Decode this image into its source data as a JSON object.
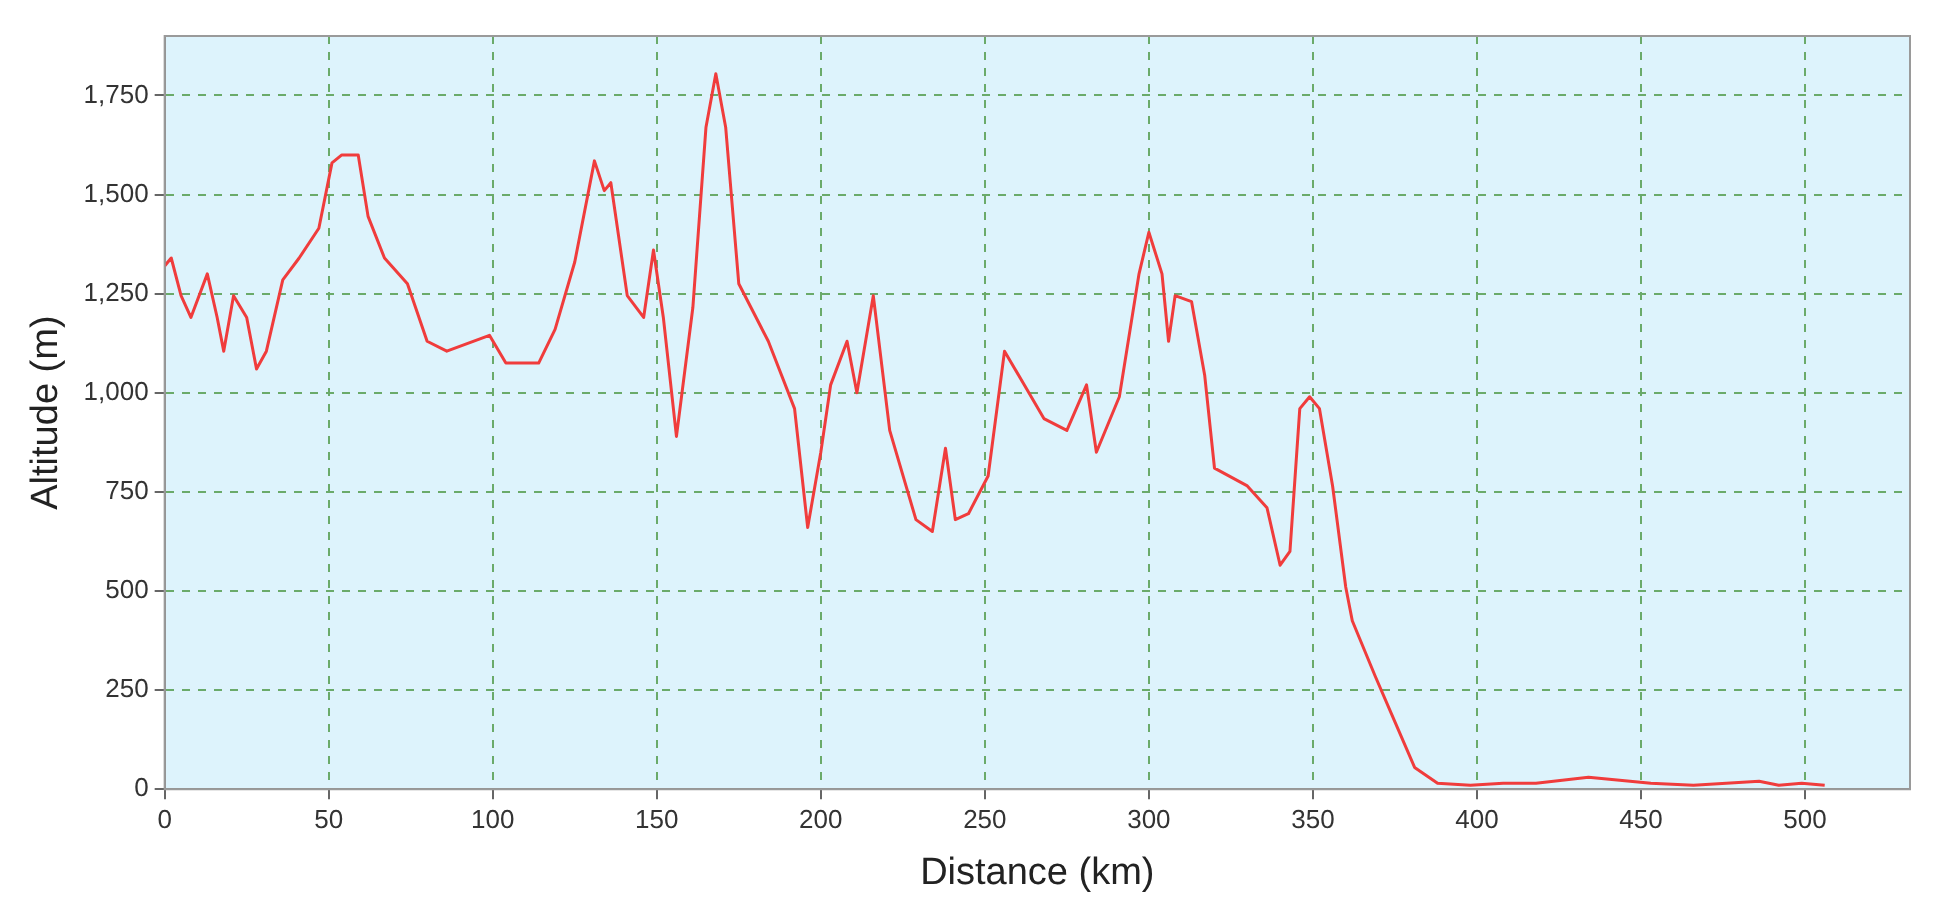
{
  "chart_data": {
    "type": "line",
    "xlabel": "Distance (km)",
    "ylabel": "Altitude (m)",
    "xlim": [
      0,
      532
    ],
    "ylim": [
      0,
      1900
    ],
    "xticks": [
      0,
      50,
      100,
      150,
      200,
      250,
      300,
      350,
      400,
      450,
      500
    ],
    "yticks": [
      0,
      250,
      500,
      750,
      {
        "value": 1000,
        "label": "1,000"
      },
      {
        "value": 1250,
        "label": "1,250"
      },
      {
        "value": 1500,
        "label": "1,500"
      },
      {
        "value": 1750,
        "label": "1,750"
      }
    ],
    "grid": true,
    "legend": false,
    "marker": "none",
    "line_style": "solid",
    "series": [
      {
        "color": "#f03c3c",
        "x": [
          0,
          2,
          5,
          8,
          13,
          16,
          18,
          21,
          25,
          28,
          31,
          36,
          41,
          47,
          51,
          54,
          59,
          62,
          67,
          74,
          80,
          86,
          99,
          104,
          114,
          119,
          125,
          131,
          134,
          136,
          141,
          146,
          149,
          152,
          156,
          161,
          165,
          168,
          171,
          175,
          184,
          192,
          196,
          200,
          203,
          208,
          211,
          216,
          221,
          229,
          234,
          238,
          241,
          245,
          251,
          256,
          262,
          268,
          275,
          281,
          284,
          291,
          297,
          300,
          304,
          306,
          308,
          313,
          317,
          320,
          330,
          336,
          340,
          343,
          346,
          349,
          352,
          356,
          360,
          362,
          369,
          375,
          381,
          388,
          398,
          408,
          418,
          434,
          453,
          466,
          486,
          492,
          499,
          506
        ],
        "values": [
          1320,
          1340,
          1245,
          1190,
          1300,
          1190,
          1105,
          1245,
          1190,
          1060,
          1105,
          1285,
          1340,
          1415,
          1580,
          1600,
          1600,
          1445,
          1340,
          1275,
          1130,
          1105,
          1145,
          1075,
          1075,
          1160,
          1330,
          1585,
          1510,
          1530,
          1245,
          1190,
          1360,
          1190,
          890,
          1215,
          1670,
          1805,
          1670,
          1275,
          1130,
          960,
          660,
          850,
          1020,
          1130,
          1000,
          1245,
          905,
          680,
          650,
          860,
          680,
          695,
          790,
          1105,
          1020,
          935,
          905,
          1020,
          850,
          990,
          1300,
          1405,
          1300,
          1130,
          1245,
          1230,
          1045,
          810,
          765,
          710,
          565,
          600,
          960,
          990,
          960,
          765,
          510,
          425,
          285,
          170,
          55,
          15,
          10,
          15,
          15,
          30,
          15,
          10,
          20,
          10,
          15,
          10
        ]
      }
    ]
  }
}
